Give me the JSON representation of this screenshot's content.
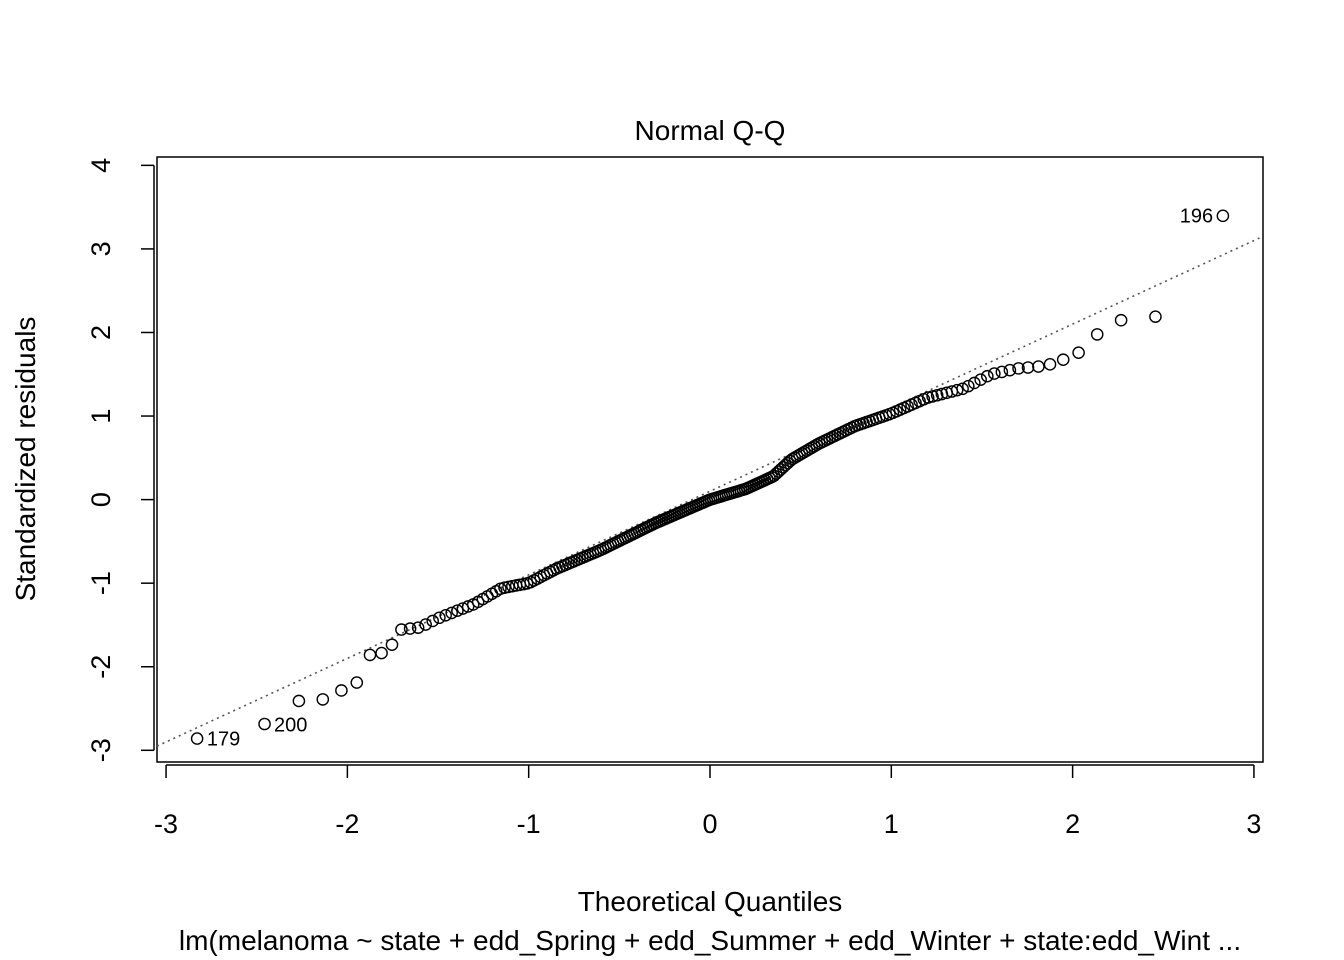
{
  "chart_data": {
    "type": "scatter",
    "title": "Normal Q-Q",
    "xlabel": "Theoretical Quantiles",
    "ylabel": "Standardized residuals",
    "subtitle": "lm(melanoma ~ state + edd_Spring + edd_Summer + edd_Winter + state:edd_Wint ...",
    "xlim": [
      -3.05,
      3.05
    ],
    "ylim": [
      -3.14,
      4.1
    ],
    "x_ticks": [
      -3,
      -2,
      -1,
      0,
      1,
      2,
      3
    ],
    "y_ticks": [
      -3,
      -2,
      -1,
      0,
      1,
      2,
      3,
      4
    ],
    "x_tick_labels": [
      "-3",
      "-2",
      "-1",
      "0",
      "1",
      "2",
      "3"
    ],
    "y_tick_labels": [
      "-3",
      "-2",
      "-1",
      "0",
      "1",
      "2",
      "3",
      "4"
    ],
    "reference_line": {
      "style": "dotted",
      "color": "#555555",
      "slope": 1.0,
      "intercept": 0.1
    },
    "grid": false,
    "point_style": "open-circle",
    "labeled_points": [
      {
        "label": "196",
        "x": 2.83,
        "y": 3.4,
        "side": "left"
      },
      {
        "label": "179",
        "x": -2.83,
        "y": -2.86,
        "side": "right"
      },
      {
        "label": "200",
        "x": -2.46,
        "y": -2.69,
        "side": "right"
      }
    ],
    "anchors": [
      [
        -2.83,
        -2.86
      ],
      [
        -2.46,
        -2.69
      ],
      [
        -2.27,
        -2.41
      ],
      [
        -2.13,
        -2.39
      ],
      [
        -2.02,
        -2.27
      ],
      [
        -1.94,
        -2.18
      ],
      [
        -1.88,
        -1.86
      ],
      [
        -1.82,
        -1.84
      ],
      [
        -1.77,
        -1.82
      ],
      [
        -1.72,
        -1.56
      ],
      [
        -1.6,
        -1.53
      ],
      [
        -1.5,
        -1.42
      ],
      [
        -1.3,
        -1.25
      ],
      [
        -1.15,
        -1.06
      ],
      [
        -1.0,
        -1.0
      ],
      [
        -0.85,
        -0.83
      ],
      [
        -0.6,
        -0.6
      ],
      [
        -0.3,
        -0.28
      ],
      [
        0.0,
        0.0
      ],
      [
        0.2,
        0.13
      ],
      [
        0.35,
        0.28
      ],
      [
        0.45,
        0.48
      ],
      [
        0.6,
        0.67
      ],
      [
        0.8,
        0.88
      ],
      [
        1.0,
        1.03
      ],
      [
        1.2,
        1.22
      ],
      [
        1.4,
        1.33
      ],
      [
        1.55,
        1.5
      ],
      [
        1.7,
        1.57
      ],
      [
        1.85,
        1.6
      ],
      [
        1.93,
        1.66
      ],
      [
        2.02,
        1.73
      ],
      [
        2.13,
        1.97
      ],
      [
        2.27,
        2.15
      ],
      [
        2.46,
        2.19
      ],
      [
        2.83,
        3.4
      ]
    ]
  }
}
